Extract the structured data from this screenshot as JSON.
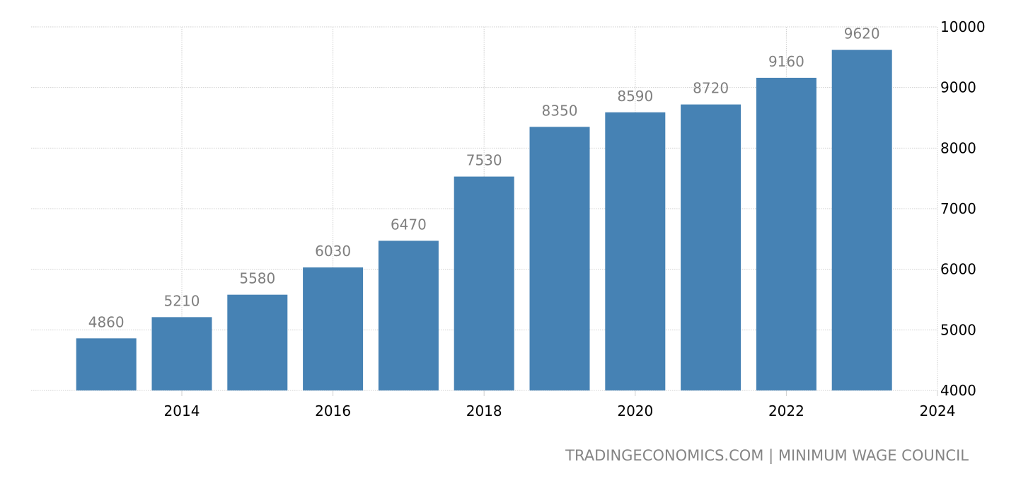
{
  "chart_data": {
    "type": "bar",
    "title": "",
    "xlabel": "",
    "ylabel": "",
    "categories": [
      "2013",
      "2014",
      "2015",
      "2016",
      "2017",
      "2018",
      "2019",
      "2020",
      "2021",
      "2022",
      "2023"
    ],
    "values": [
      4860,
      5210,
      5580,
      6030,
      6470,
      7530,
      8350,
      8590,
      8720,
      9160,
      9620
    ],
    "ylim": [
      4000,
      10000
    ],
    "yticks": [
      "4000",
      "5000",
      "6000",
      "7000",
      "8000",
      "9000",
      "10000"
    ],
    "xticks": [
      "2014",
      "2016",
      "2018",
      "2020",
      "2022",
      "2024"
    ],
    "y_axis_side": "right",
    "grid": true,
    "bar_color": "#4682b4",
    "source": "TRADINGECONOMICS.COM | MINIMUM WAGE COUNCIL"
  }
}
